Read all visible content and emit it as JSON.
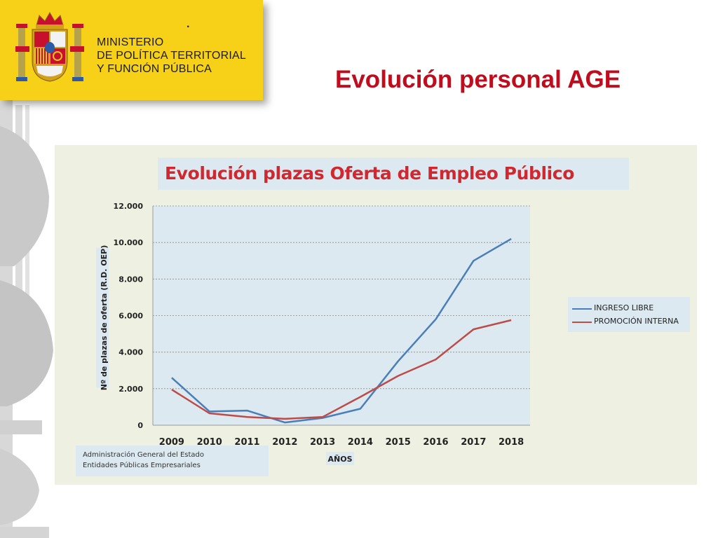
{
  "header": {
    "ministry_lines": [
      "MINISTERIO",
      "DE POLÍTICA TERRITORIAL",
      "Y FUNCIÓN PÚBLICA"
    ],
    "dot": "."
  },
  "slide": {
    "title": "Evolución personal AGE"
  },
  "colors": {
    "header_band": "#f7d117",
    "title_red": "#c00d1e",
    "series_ingreso": "#4a7ebb",
    "series_promocion": "#be4b48"
  },
  "footer_note": {
    "lines": [
      "Administración General del Estado",
      "Entidades Públicas Empresariales"
    ]
  },
  "chart_data": {
    "type": "line",
    "title": "Evolución plazas Oferta de Empleo Público",
    "xlabel": "AÑOS",
    "ylabel": "Nº de plazas de oferta (R.D. OEP)",
    "x": [
      "2009",
      "2010",
      "2011",
      "2012",
      "2013",
      "2014",
      "2015",
      "2016",
      "2017",
      "2018"
    ],
    "ylim": [
      0,
      12000
    ],
    "yticks": [
      0,
      2000,
      4000,
      6000,
      8000,
      10000,
      12000
    ],
    "ytick_labels": [
      "0",
      "2.000",
      "4.000",
      "6.000",
      "8.000",
      "10.000",
      "12.000"
    ],
    "grid": "horizontal dashed",
    "legend_position": "right",
    "series": [
      {
        "name": "INGRESO LIBRE",
        "values": [
          2600,
          750,
          800,
          150,
          400,
          900,
          3500,
          5800,
          9000,
          10200
        ]
      },
      {
        "name": "PROMOCIÓN INTERNA",
        "values": [
          1950,
          650,
          450,
          350,
          450,
          1550,
          2700,
          3600,
          5250,
          5750
        ]
      }
    ]
  }
}
